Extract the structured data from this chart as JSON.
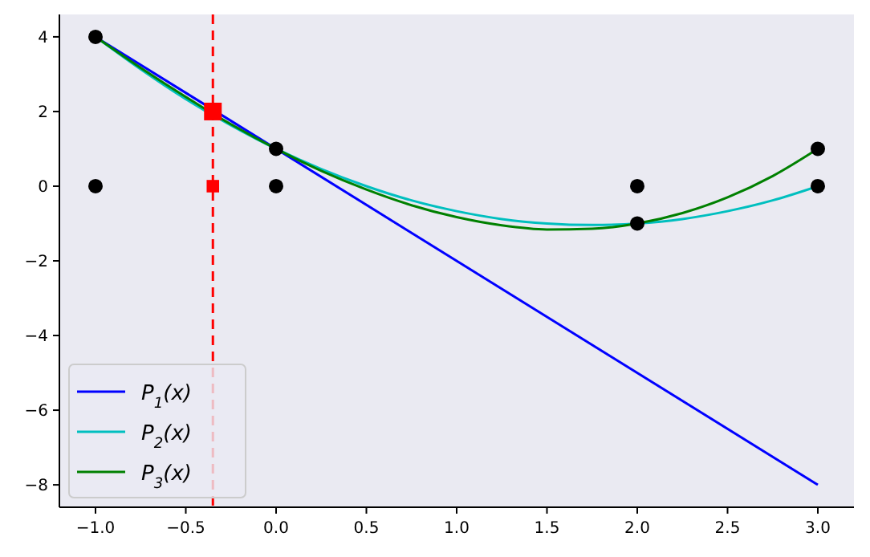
{
  "chart_data": {
    "type": "line",
    "xlim": [
      -1.2,
      3.2
    ],
    "ylim": [
      -8.6,
      4.6
    ],
    "xticks": [
      {
        "value": -1,
        "label": "−1.0"
      },
      {
        "value": -0.5,
        "label": "−0.5"
      },
      {
        "value": 0,
        "label": "0.0"
      },
      {
        "value": 0.5,
        "label": "0.5"
      },
      {
        "value": 1,
        "label": "1.0"
      },
      {
        "value": 1.5,
        "label": "1.5"
      },
      {
        "value": 2,
        "label": "2.0"
      },
      {
        "value": 2.5,
        "label": "2.5"
      },
      {
        "value": 3,
        "label": "3.0"
      }
    ],
    "yticks": [
      {
        "value": -8,
        "label": "−8"
      },
      {
        "value": -6,
        "label": "−6"
      },
      {
        "value": -4,
        "label": "−4"
      },
      {
        "value": -2,
        "label": "−2"
      },
      0,
      2,
      4
    ],
    "grid": false,
    "legend": "bottom left",
    "line_style": "solid",
    "ref_lines": [
      {
        "axis": "x",
        "value": -0.35,
        "color": "#ff0000",
        "line_style": "dashed"
      }
    ],
    "series": [
      {
        "name": "P$_{1}$(x)",
        "color": "#0000ff",
        "x": [
          -1,
          3
        ],
        "values": [
          4,
          -8
        ]
      },
      {
        "name": "P$_{2}$(x)",
        "color": "#00bfbf",
        "x": [
          -1,
          -0.75,
          -0.5,
          -0.25,
          0,
          0.25,
          0.5,
          0.75,
          1,
          1.25,
          1.5,
          1.75,
          2,
          2.25,
          2.5,
          2.75,
          3
        ],
        "values": [
          4,
          3.13,
          2.33,
          1.63,
          1,
          0.46,
          0,
          -0.38,
          -0.67,
          -0.88,
          -1,
          -1.04,
          -1,
          -0.88,
          -0.67,
          -0.38,
          0
        ]
      },
      {
        "name": "P$_{3}$(x)",
        "color": "#008000",
        "x": [
          -1,
          -0.75,
          -0.5,
          -0.25,
          0,
          0.25,
          0.5,
          0.75,
          1,
          1.25,
          1.5,
          1.75,
          2,
          2.25,
          2.5,
          2.75,
          3
        ],
        "values": [
          4,
          3.17,
          2.39,
          1.66,
          1,
          0.41,
          -0.09,
          -0.51,
          -0.83,
          -1.05,
          -1.16,
          -1.14,
          -1,
          -0.72,
          -0.3,
          0.27,
          1
        ]
      },
      {
        "type": "scatter",
        "color": "#000000",
        "marker": "circle",
        "x": [
          -1,
          -1,
          0,
          0,
          2,
          2,
          3,
          3
        ],
        "values": [
          4,
          0,
          1,
          0,
          0,
          -1,
          1,
          0
        ]
      },
      {
        "type": "scatter",
        "color": "#ff0000",
        "marker": "square",
        "x": [
          -0.35,
          -0.35
        ],
        "values": [
          2,
          0
        ],
        "sizes": [
          1,
          0.5
        ]
      }
    ]
  }
}
